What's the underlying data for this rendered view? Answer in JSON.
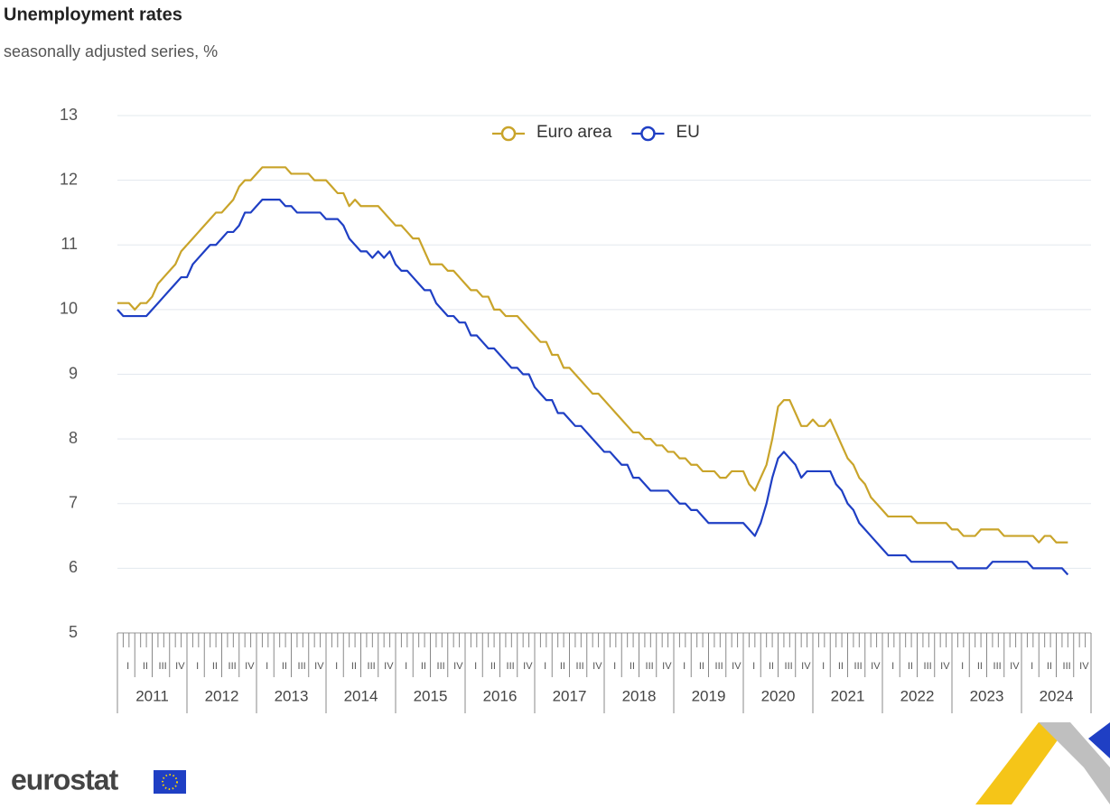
{
  "chart_data": {
    "type": "line",
    "title": "Unemployment rates",
    "subtitle": "seasonally adjusted series, %",
    "x_axis": {
      "years": [
        2011,
        2012,
        2013,
        2014,
        2015,
        2016,
        2017,
        2018,
        2019,
        2020,
        2021,
        2022,
        2023,
        2024
      ],
      "quarters": [
        "I",
        "II",
        "III",
        "IV"
      ]
    },
    "ylim": [
      5,
      13
    ],
    "yticks": [
      5,
      6,
      7,
      8,
      9,
      10,
      11,
      12,
      13
    ],
    "grid": true,
    "legend": "top",
    "series": [
      {
        "name": "Euro area",
        "color": "#c9a42a",
        "values": [
          10.1,
          10.1,
          10.1,
          10.0,
          10.1,
          10.1,
          10.2,
          10.4,
          10.5,
          10.6,
          10.7,
          10.9,
          11.0,
          11.1,
          11.2,
          11.3,
          11.4,
          11.5,
          11.5,
          11.6,
          11.7,
          11.9,
          12.0,
          12.0,
          12.1,
          12.2,
          12.2,
          12.2,
          12.2,
          12.2,
          12.1,
          12.1,
          12.1,
          12.1,
          12.0,
          12.0,
          12.0,
          11.9,
          11.8,
          11.8,
          11.6,
          11.7,
          11.6,
          11.6,
          11.6,
          11.6,
          11.5,
          11.4,
          11.3,
          11.3,
          11.2,
          11.1,
          11.1,
          10.9,
          10.7,
          10.7,
          10.7,
          10.6,
          10.6,
          10.5,
          10.4,
          10.3,
          10.3,
          10.2,
          10.2,
          10.0,
          10.0,
          9.9,
          9.9,
          9.9,
          9.8,
          9.7,
          9.6,
          9.5,
          9.5,
          9.3,
          9.3,
          9.1,
          9.1,
          9.0,
          8.9,
          8.8,
          8.7,
          8.7,
          8.6,
          8.5,
          8.4,
          8.3,
          8.2,
          8.1,
          8.1,
          8.0,
          8.0,
          7.9,
          7.9,
          7.8,
          7.8,
          7.7,
          7.7,
          7.6,
          7.6,
          7.5,
          7.5,
          7.5,
          7.4,
          7.4,
          7.5,
          7.5,
          7.5,
          7.3,
          7.2,
          7.4,
          7.6,
          8.0,
          8.5,
          8.6,
          8.6,
          8.4,
          8.2,
          8.2,
          8.3,
          8.2,
          8.2,
          8.3,
          8.1,
          7.9,
          7.7,
          7.6,
          7.4,
          7.3,
          7.1,
          7.0,
          6.9,
          6.8,
          6.8,
          6.8,
          6.8,
          6.8,
          6.7,
          6.7,
          6.7,
          6.7,
          6.7,
          6.7,
          6.6,
          6.6,
          6.5,
          6.5,
          6.5,
          6.6,
          6.6,
          6.6,
          6.6,
          6.5,
          6.5,
          6.5,
          6.5,
          6.5,
          6.5,
          6.4,
          6.5,
          6.5,
          6.4,
          6.4,
          6.4
        ]
      },
      {
        "name": "EU",
        "color": "#1f3fc4",
        "values": [
          10.0,
          9.9,
          9.9,
          9.9,
          9.9,
          9.9,
          10.0,
          10.1,
          10.2,
          10.3,
          10.4,
          10.5,
          10.5,
          10.7,
          10.8,
          10.9,
          11.0,
          11.0,
          11.1,
          11.2,
          11.2,
          11.3,
          11.5,
          11.5,
          11.6,
          11.7,
          11.7,
          11.7,
          11.7,
          11.6,
          11.6,
          11.5,
          11.5,
          11.5,
          11.5,
          11.5,
          11.4,
          11.4,
          11.4,
          11.3,
          11.1,
          11.0,
          10.9,
          10.9,
          10.8,
          10.9,
          10.8,
          10.9,
          10.7,
          10.6,
          10.6,
          10.5,
          10.4,
          10.3,
          10.3,
          10.1,
          10.0,
          9.9,
          9.9,
          9.8,
          9.8,
          9.6,
          9.6,
          9.5,
          9.4,
          9.4,
          9.3,
          9.2,
          9.1,
          9.1,
          9.0,
          9.0,
          8.8,
          8.7,
          8.6,
          8.6,
          8.4,
          8.4,
          8.3,
          8.2,
          8.2,
          8.1,
          8.0,
          7.9,
          7.8,
          7.8,
          7.7,
          7.6,
          7.6,
          7.4,
          7.4,
          7.3,
          7.2,
          7.2,
          7.2,
          7.2,
          7.1,
          7.0,
          7.0,
          6.9,
          6.9,
          6.8,
          6.7,
          6.7,
          6.7,
          6.7,
          6.7,
          6.7,
          6.7,
          6.6,
          6.5,
          6.7,
          7.0,
          7.4,
          7.7,
          7.8,
          7.7,
          7.6,
          7.4,
          7.5,
          7.5,
          7.5,
          7.5,
          7.5,
          7.3,
          7.2,
          7.0,
          6.9,
          6.7,
          6.6,
          6.5,
          6.4,
          6.3,
          6.2,
          6.2,
          6.2,
          6.2,
          6.1,
          6.1,
          6.1,
          6.1,
          6.1,
          6.1,
          6.1,
          6.1,
          6.0,
          6.0,
          6.0,
          6.0,
          6.0,
          6.0,
          6.1,
          6.1,
          6.1,
          6.1,
          6.1,
          6.1,
          6.1,
          6.0,
          6.0,
          6.0,
          6.0,
          6.0,
          6.0,
          5.9
        ]
      }
    ]
  },
  "footer": {
    "logo": "eurostat"
  }
}
